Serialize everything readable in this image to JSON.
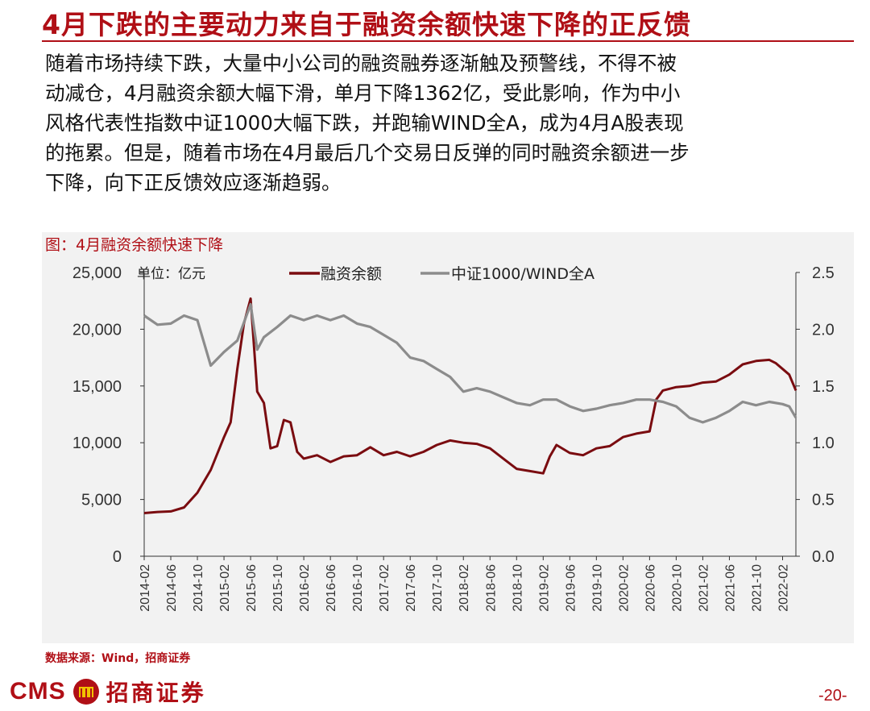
{
  "header": {
    "title": "4月下跌的主要动力来自于融资余额快速下降的正反馈"
  },
  "body": {
    "lines": [
      "随着市场持续下跌，大量中小公司的融资融券逐渐触及预警线，不得不被",
      "动减仓，4月融资余额大幅下滑，单月下降1362亿，受此影响，作为中小",
      "风格代表性指数中证1000大幅下跌，并跑输WIND全A，成为4月A股表现",
      "的拖累。但是，随着市场在4月最后几个交易日反弹的同时融资余额进一步",
      "下降，向下正反馈效应逐渐趋弱。"
    ]
  },
  "figure": {
    "caption": "图：4月融资余额快速下降",
    "source": "数据来源：Wind，招商证券"
  },
  "chart_data": {
    "type": "line",
    "title": "图：4月融资余额快速下降",
    "unit_label": "单位：亿元",
    "legend_placement": "top",
    "grid": false,
    "x_ticks": [
      "2014-02",
      "2014-06",
      "2014-10",
      "2015-02",
      "2015-06",
      "2015-10",
      "2016-02",
      "2016-06",
      "2016-10",
      "2017-02",
      "2017-06",
      "2017-10",
      "2018-02",
      "2018-06",
      "2018-10",
      "2019-02",
      "2019-06",
      "2019-10",
      "2020-02",
      "2020-06",
      "2020-10",
      "2021-02",
      "2021-06",
      "2021-10",
      "2022-02"
    ],
    "y_left": {
      "min": 0,
      "max": 25000,
      "ticks": [
        0,
        5000,
        10000,
        15000,
        20000,
        25000
      ],
      "tick_labels": [
        "0",
        "5,000",
        "10,000",
        "15,000",
        "20,000",
        "25,000"
      ]
    },
    "y_right": {
      "min": 0,
      "max": 2.5,
      "ticks": [
        0,
        0.5,
        1.0,
        1.5,
        2.0,
        2.5
      ],
      "tick_labels": [
        "0.0",
        "0.5",
        "1.0",
        "1.5",
        "2.0",
        "2.5"
      ]
    },
    "series": [
      {
        "name": "融资余额",
        "axis": "left",
        "color": "#7a0c10",
        "points": [
          [
            "2014-02",
            3800
          ],
          [
            "2014-04",
            3900
          ],
          [
            "2014-06",
            3950
          ],
          [
            "2014-08",
            4300
          ],
          [
            "2014-10",
            5600
          ],
          [
            "2014-12",
            7600
          ],
          [
            "2015-02",
            10500
          ],
          [
            "2015-03",
            11800
          ],
          [
            "2015-04",
            16500
          ],
          [
            "2015-05",
            20500
          ],
          [
            "2015-06",
            22700
          ],
          [
            "2015-07",
            14500
          ],
          [
            "2015-08",
            13500
          ],
          [
            "2015-09",
            9500
          ],
          [
            "2015-10",
            9700
          ],
          [
            "2015-11",
            12000
          ],
          [
            "2015-12",
            11800
          ],
          [
            "2016-01",
            9200
          ],
          [
            "2016-02",
            8600
          ],
          [
            "2016-04",
            8900
          ],
          [
            "2016-06",
            8300
          ],
          [
            "2016-08",
            8800
          ],
          [
            "2016-10",
            8900
          ],
          [
            "2016-12",
            9600
          ],
          [
            "2017-02",
            8900
          ],
          [
            "2017-04",
            9200
          ],
          [
            "2017-06",
            8800
          ],
          [
            "2017-08",
            9200
          ],
          [
            "2017-10",
            9800
          ],
          [
            "2017-12",
            10200
          ],
          [
            "2018-02",
            10000
          ],
          [
            "2018-04",
            9900
          ],
          [
            "2018-06",
            9500
          ],
          [
            "2018-08",
            8600
          ],
          [
            "2018-10",
            7700
          ],
          [
            "2018-12",
            7500
          ],
          [
            "2019-02",
            7300
          ],
          [
            "2019-03",
            8800
          ],
          [
            "2019-04",
            9800
          ],
          [
            "2019-06",
            9100
          ],
          [
            "2019-08",
            8900
          ],
          [
            "2019-10",
            9500
          ],
          [
            "2019-12",
            9700
          ],
          [
            "2020-02",
            10500
          ],
          [
            "2020-04",
            10800
          ],
          [
            "2020-06",
            11000
          ],
          [
            "2020-07",
            13800
          ],
          [
            "2020-08",
            14600
          ],
          [
            "2020-10",
            14900
          ],
          [
            "2020-12",
            15000
          ],
          [
            "2021-02",
            15300
          ],
          [
            "2021-04",
            15400
          ],
          [
            "2021-06",
            16000
          ],
          [
            "2021-08",
            16900
          ],
          [
            "2021-10",
            17200
          ],
          [
            "2021-12",
            17300
          ],
          [
            "2022-01",
            17000
          ],
          [
            "2022-02",
            16500
          ],
          [
            "2022-03",
            16000
          ],
          [
            "2022-04",
            14600
          ]
        ]
      },
      {
        "name": "中证1000/WIND全A",
        "axis": "right",
        "color": "#8c8c8c",
        "points": [
          [
            "2014-02",
            2.12
          ],
          [
            "2014-04",
            2.04
          ],
          [
            "2014-06",
            2.05
          ],
          [
            "2014-08",
            2.12
          ],
          [
            "2014-10",
            2.08
          ],
          [
            "2014-12",
            1.68
          ],
          [
            "2015-02",
            1.8
          ],
          [
            "2015-04",
            1.9
          ],
          [
            "2015-06",
            2.22
          ],
          [
            "2015-07",
            1.82
          ],
          [
            "2015-08",
            1.93
          ],
          [
            "2015-10",
            2.02
          ],
          [
            "2015-12",
            2.12
          ],
          [
            "2016-02",
            2.08
          ],
          [
            "2016-04",
            2.12
          ],
          [
            "2016-06",
            2.08
          ],
          [
            "2016-08",
            2.12
          ],
          [
            "2016-10",
            2.05
          ],
          [
            "2016-12",
            2.02
          ],
          [
            "2017-02",
            1.95
          ],
          [
            "2017-04",
            1.88
          ],
          [
            "2017-06",
            1.75
          ],
          [
            "2017-08",
            1.72
          ],
          [
            "2017-10",
            1.65
          ],
          [
            "2017-12",
            1.58
          ],
          [
            "2018-02",
            1.45
          ],
          [
            "2018-04",
            1.48
          ],
          [
            "2018-06",
            1.45
          ],
          [
            "2018-08",
            1.4
          ],
          [
            "2018-10",
            1.35
          ],
          [
            "2018-12",
            1.33
          ],
          [
            "2019-02",
            1.38
          ],
          [
            "2019-04",
            1.38
          ],
          [
            "2019-06",
            1.32
          ],
          [
            "2019-08",
            1.28
          ],
          [
            "2019-10",
            1.3
          ],
          [
            "2019-12",
            1.33
          ],
          [
            "2020-02",
            1.35
          ],
          [
            "2020-04",
            1.38
          ],
          [
            "2020-06",
            1.38
          ],
          [
            "2020-08",
            1.36
          ],
          [
            "2020-10",
            1.32
          ],
          [
            "2020-12",
            1.22
          ],
          [
            "2021-02",
            1.18
          ],
          [
            "2021-04",
            1.22
          ],
          [
            "2021-06",
            1.28
          ],
          [
            "2021-08",
            1.36
          ],
          [
            "2021-10",
            1.33
          ],
          [
            "2021-12",
            1.36
          ],
          [
            "2022-02",
            1.34
          ],
          [
            "2022-03",
            1.32
          ],
          [
            "2022-04",
            1.22
          ]
        ]
      }
    ]
  },
  "footer": {
    "logo_text": "CMS",
    "logo_cn": "招商证券",
    "page_number": "-20-"
  },
  "colors": {
    "accent": "#b00f16",
    "panel_bg": "#f2f2f2"
  }
}
